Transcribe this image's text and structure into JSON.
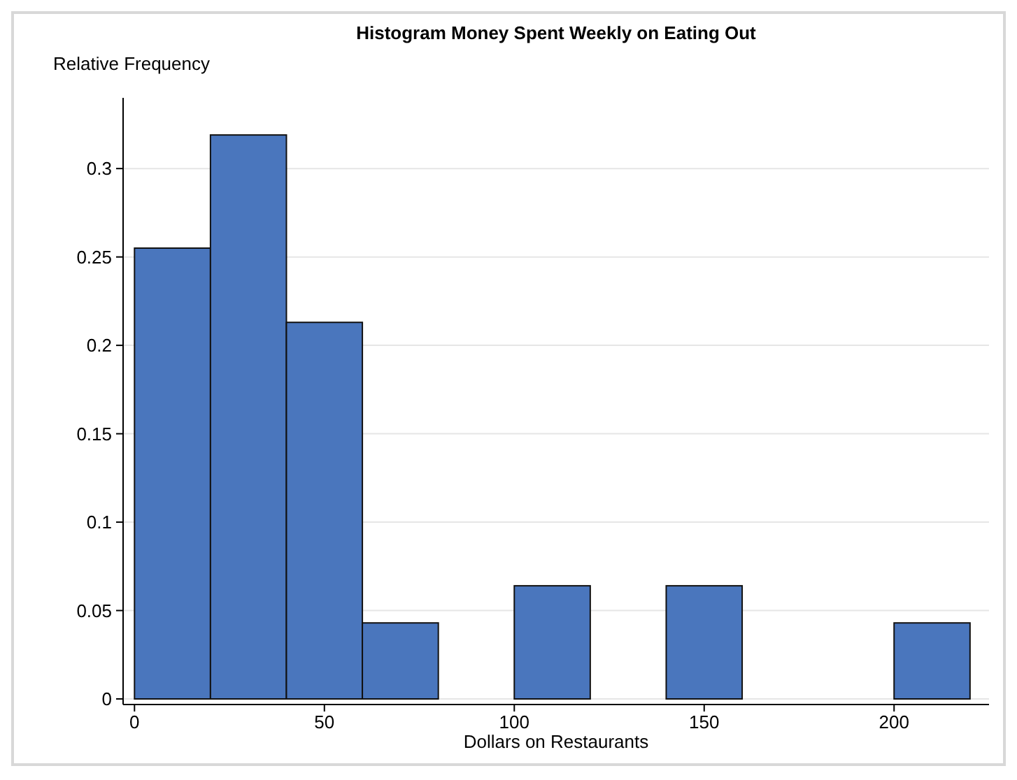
{
  "chart_data": {
    "type": "histogram",
    "title": "Histogram Money Spent Weekly on Eating Out",
    "xlabel": "Dollars on Restaurants",
    "ylabel": "Relative Frequency",
    "bins": [
      0,
      20,
      40,
      60,
      80,
      100,
      120,
      140,
      160,
      180,
      200,
      220
    ],
    "values": [
      0.255,
      0.319,
      0.213,
      0.043,
      0,
      0.064,
      0,
      0.064,
      0,
      0,
      0.043
    ],
    "color": "#4a76bd",
    "xlim": [
      -3,
      225
    ],
    "xticks": [
      0,
      50,
      100,
      150,
      200
    ],
    "ylim": [
      0,
      0.34
    ],
    "yticks": [
      0,
      0.05,
      0.1,
      0.15,
      0.2,
      0.25,
      0.3
    ],
    "grid": "y"
  }
}
